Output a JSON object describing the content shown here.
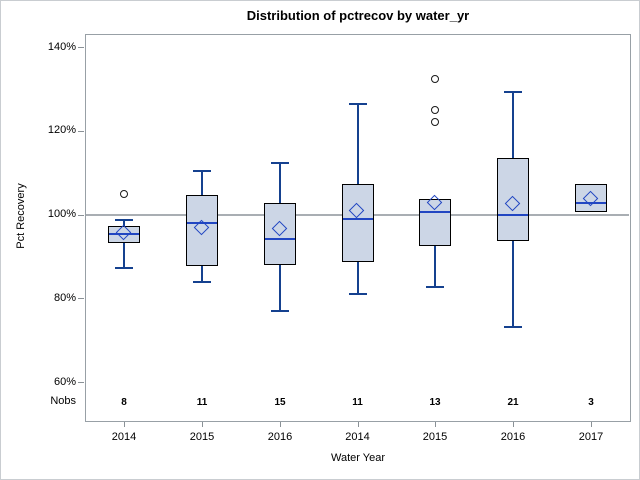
{
  "chart_data": {
    "type": "boxplot",
    "title": "Distribution of pctrecov by water_yr",
    "xlabel": "Water Year",
    "ylabel": "Pct Recovery",
    "nobs_label": "Nobs",
    "ylim": [
      51,
      143
    ],
    "yticks": [
      140,
      120,
      100,
      80,
      60
    ],
    "ytick_labels": [
      "140%",
      "120%",
      "100%",
      "80%",
      "60%"
    ],
    "reference_line_y": 100,
    "grid": false,
    "legend": false,
    "categories": [
      "2014",
      "2015",
      "2016",
      "2014",
      "2015",
      "2016",
      "2017"
    ],
    "nobs": [
      8,
      11,
      15,
      11,
      13,
      21,
      3
    ],
    "boxes": [
      {
        "category": "2014",
        "n": 8,
        "whisker_low": 87.3,
        "q1": 93.2,
        "median": 95.3,
        "mean": 95.5,
        "q3": 97.2,
        "whisker_high": 98.6,
        "outliers": [
          105
        ]
      },
      {
        "category": "2015",
        "n": 11,
        "whisker_low": 84.0,
        "q1": 87.7,
        "median": 98.0,
        "mean": 96.7,
        "q3": 104.6,
        "whisker_high": 110.4,
        "outliers": []
      },
      {
        "category": "2016",
        "n": 15,
        "whisker_low": 77.0,
        "q1": 87.9,
        "median": 94.1,
        "mean": 96.3,
        "q3": 102.8,
        "whisker_high": 112.3,
        "outliers": []
      },
      {
        "category": "2014",
        "n": 11,
        "whisker_low": 81.0,
        "q1": 88.7,
        "median": 99.0,
        "mean": 100.6,
        "q3": 107.4,
        "whisker_high": 126.4,
        "outliers": []
      },
      {
        "category": "2015",
        "n": 13,
        "whisker_low": 82.7,
        "q1": 92.5,
        "median": 100.5,
        "mean": 102.6,
        "q3": 103.8,
        "whisker_high": 103.8,
        "outliers": [
          122.0,
          124.9,
          132.4
        ]
      },
      {
        "category": "2016",
        "n": 21,
        "whisker_low": 73.2,
        "q1": 93.6,
        "median": 100.0,
        "mean": 102.4,
        "q3": 113.5,
        "whisker_high": 129.3,
        "outliers": []
      },
      {
        "category": "2017",
        "n": 3,
        "whisker_low": 100.6,
        "q1": 100.6,
        "median": 102.8,
        "mean": 103.7,
        "q3": 107.2,
        "whisker_high": 107.2,
        "outliers": []
      }
    ],
    "colors": {
      "box_fill": "#ccd6e6",
      "box_border": "#000000",
      "whisker": "#15418f",
      "median": "#2146c2",
      "mean_diamond": "#2146c2",
      "outlier": "#1a1a1a",
      "reference_line": "#a9aeb3",
      "frame_border": "#98a0a6",
      "tick": "#8a9196",
      "text": "#000000"
    }
  }
}
